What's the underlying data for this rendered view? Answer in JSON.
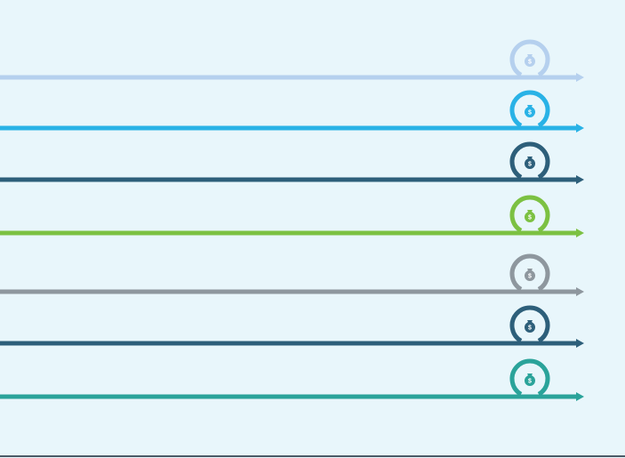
{
  "background": "#e8f6fb",
  "rows": [
    {
      "color": "#b5d0ee",
      "icon": "money-bag-icon"
    },
    {
      "color": "#29b2e6",
      "icon": "money-bag-icon"
    },
    {
      "color": "#2d5f7a",
      "icon": "money-bag-icon"
    },
    {
      "color": "#7cc142",
      "icon": "money-bag-icon"
    },
    {
      "color": "#8e979e",
      "icon": "money-bag-icon"
    },
    {
      "color": "#2d5f7a",
      "icon": "money-bag-icon"
    },
    {
      "color": "#2aa39a",
      "icon": "money-bag-icon"
    }
  ],
  "footer_rule_color": "#4a5a66"
}
